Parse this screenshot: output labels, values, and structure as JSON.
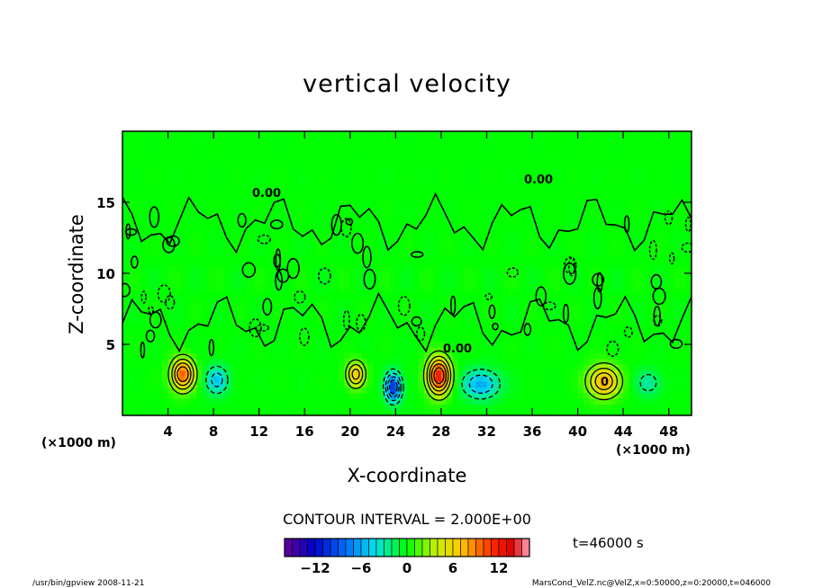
{
  "chart_data": {
    "type": "heatmap",
    "title": "vertical velocity",
    "xlabel": "X-coordinate",
    "ylabel": "Z-coordinate",
    "x_unit": "(×1000 m)",
    "x_unit_right": "(×1000 m)",
    "xlim": [
      0,
      50
    ],
    "ylim": [
      0,
      20
    ],
    "x_ticks": [
      4,
      8,
      12,
      16,
      20,
      24,
      28,
      32,
      36,
      40,
      44,
      48
    ],
    "y_ticks": [
      5,
      10,
      15
    ],
    "contour_interval_text": "CONTOUR INTERVAL = 2.000E+00",
    "contour_labels": [
      "0.00",
      "0.00",
      "0.00",
      "0"
    ],
    "time_text": "t=46000 s",
    "colorbar": {
      "min": -16,
      "max": 16,
      "ticks": [
        "−12",
        "−6",
        "0",
        "6",
        "12"
      ],
      "tick_values": [
        -12,
        -6,
        0,
        6,
        12
      ]
    },
    "features": [
      {
        "x": 5.3,
        "z": 2.9,
        "peak": 10,
        "sx": 1.0,
        "sz": 1.1,
        "label": ""
      },
      {
        "x": 20.5,
        "z": 2.9,
        "peak": 7,
        "sx": 0.8,
        "sz": 0.9,
        "label": ""
      },
      {
        "x": 27.8,
        "z": 2.8,
        "peak": 12,
        "sx": 1.0,
        "sz": 1.3,
        "label": ""
      },
      {
        "x": 42.3,
        "z": 2.4,
        "peak": 8,
        "sx": 1.4,
        "sz": 1.1,
        "label": "0"
      },
      {
        "x": 8.3,
        "z": 2.5,
        "peak": -5,
        "sx": 1.0,
        "sz": 1.0,
        "label": ""
      },
      {
        "x": 23.8,
        "z": 2.0,
        "peak": -10,
        "sx": 0.7,
        "sz": 1.0,
        "label": ""
      },
      {
        "x": 31.5,
        "z": 2.2,
        "peak": -6,
        "sx": 1.6,
        "sz": 1.0,
        "label": ""
      },
      {
        "x": 46.2,
        "z": 2.3,
        "peak": -3,
        "sx": 1.1,
        "sz": 0.9,
        "label": ""
      }
    ]
  },
  "footer": {
    "left": "/usr/bin/gpview   2008-11-21",
    "right": "MarsCond_VelZ.nc@VelZ,x=0:50000,z=0:20000,t=046000"
  }
}
